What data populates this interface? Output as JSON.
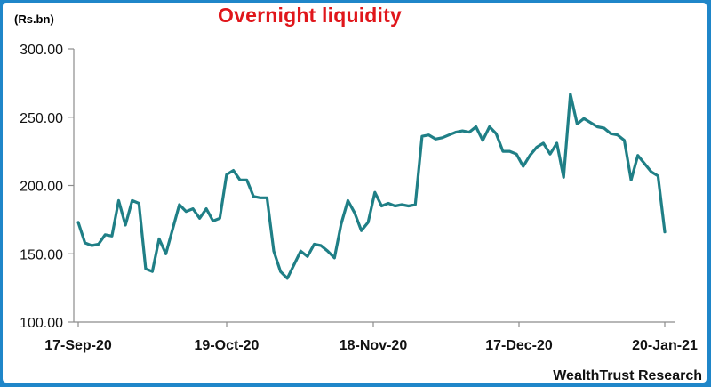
{
  "header": {
    "unit": "(Rs.bn)",
    "title": "Overnight liquidity"
  },
  "footer": {
    "source": "WealthTrust Research"
  },
  "colors": {
    "background_frame": "#1f86c9",
    "line": "#1f7f86",
    "title": "#e0161b"
  },
  "chart_data": {
    "type": "line",
    "title": "Overnight liquidity",
    "ylabel": "(Rs.bn)",
    "xlabel": "",
    "ylim": [
      100,
      300
    ],
    "yticks": [
      "100.00",
      "150.00",
      "200.00",
      "250.00",
      "300.00"
    ],
    "xticks": [
      "17-Sep-20",
      "19-Oct-20",
      "18-Nov-20",
      "17-Dec-20",
      "20-Jan-21"
    ],
    "grid": false,
    "legend": "none",
    "values": [
      173,
      158,
      156,
      157,
      164,
      163,
      189,
      171,
      189,
      187,
      139,
      137,
      161,
      150,
      168,
      186,
      181,
      183,
      176,
      183,
      174,
      176,
      208,
      211,
      204,
      204,
      192,
      191,
      191,
      152,
      137,
      132,
      142,
      152,
      148,
      157,
      156,
      152,
      147,
      172,
      189,
      180,
      167,
      173,
      195,
      185,
      187,
      185,
      186,
      185,
      186,
      236,
      237,
      234,
      235,
      237,
      239,
      240,
      239,
      243,
      233,
      243,
      238,
      225,
      225,
      223,
      214,
      222,
      228,
      231,
      223,
      231,
      206,
      267,
      245,
      249,
      246,
      243,
      242,
      238,
      237,
      233,
      204,
      222,
      216,
      210,
      207,
      166
    ]
  }
}
